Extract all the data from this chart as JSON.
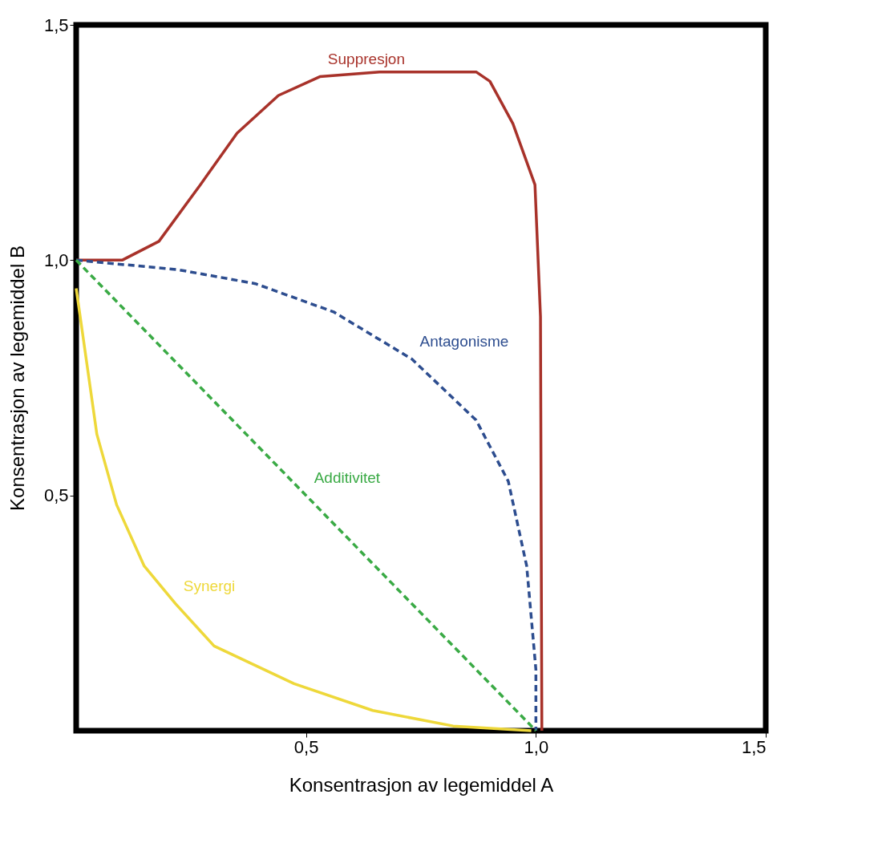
{
  "chart_data": {
    "type": "line",
    "xlabel": "Konsentrasjon av legemiddel A",
    "ylabel": "Konsentrasjon av legemiddel B",
    "xlim": [
      0,
      1.5
    ],
    "ylim": [
      0,
      1.5
    ],
    "xticks": [
      {
        "value": 0.5,
        "label": "0,5"
      },
      {
        "value": 1.0,
        "label": "1,0"
      },
      {
        "value": 1.5,
        "label": "1,5"
      }
    ],
    "yticks": [
      {
        "value": 0.5,
        "label": "0,5"
      },
      {
        "value": 1.0,
        "label": "1,0"
      },
      {
        "value": 1.5,
        "label": "1,5"
      }
    ],
    "grid": false,
    "marker": "none",
    "series": [
      {
        "name": "Suppresjon",
        "color": "#a8322a",
        "line_style": "solid",
        "x": [
          0,
          0.1,
          0.18,
          0.27,
          0.35,
          0.44,
          0.53,
          0.66,
          0.87,
          0.9,
          0.95,
          0.998,
          1.01,
          1.013
        ],
        "values": [
          1.0,
          1.0,
          1.04,
          1.16,
          1.27,
          1.35,
          1.39,
          1.4,
          1.4,
          1.38,
          1.29,
          1.16,
          0.88,
          0
        ]
      },
      {
        "name": "Antagonisme",
        "color": "#2d4d8f",
        "line_style": "dashed",
        "x": [
          0,
          0.22,
          0.39,
          0.56,
          0.73,
          0.87,
          0.94,
          0.98,
          1.0,
          1.0
        ],
        "values": [
          1.0,
          0.98,
          0.95,
          0.89,
          0.79,
          0.66,
          0.53,
          0.35,
          0.13,
          0
        ]
      },
      {
        "name": "Additivitet",
        "color": "#3aaa45",
        "line_style": "dashed",
        "x": [
          0,
          0.5,
          1.0
        ],
        "values": [
          1.0,
          0.5,
          0
        ]
      },
      {
        "name": "Synergi",
        "color": "#eed83a",
        "line_style": "solid",
        "x": [
          0,
          0.045,
          0.088,
          0.148,
          0.216,
          0.3,
          0.474,
          0.645,
          0.82,
          0.99
        ],
        "values": [
          0.94,
          0.63,
          0.48,
          0.35,
          0.27,
          0.18,
          0.1,
          0.043,
          0.01,
          0
        ]
      }
    ]
  }
}
